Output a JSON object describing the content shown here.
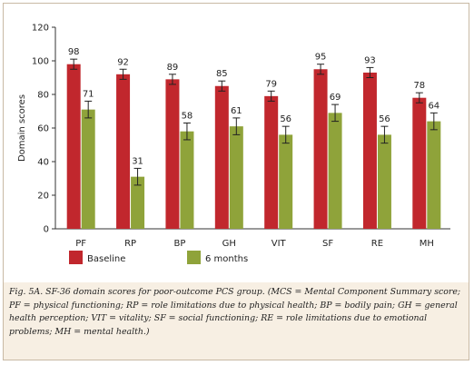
{
  "chart_data": {
    "type": "bar",
    "categories": [
      "PF",
      "RP",
      "BP",
      "GH",
      "VIT",
      "SF",
      "RE",
      "MH"
    ],
    "series": [
      {
        "name": "Baseline",
        "values": [
          98,
          92,
          89,
          85,
          79,
          95,
          93,
          78
        ],
        "error": [
          3,
          3,
          3,
          3,
          3,
          3,
          3,
          3
        ],
        "color": "#c1272d"
      },
      {
        "name": "6 months",
        "values": [
          71,
          31,
          58,
          61,
          56,
          69,
          56,
          64
        ],
        "error": [
          5,
          5,
          5,
          5,
          5,
          5,
          5,
          5
        ],
        "color": "#8fa33a"
      }
    ],
    "xlabel": "",
    "ylabel": "Domain scores",
    "ylim": [
      0,
      120
    ],
    "yticks": [
      0,
      20,
      40,
      60,
      80,
      100,
      120
    ],
    "legend": "bottom-left"
  },
  "caption": "Fig. 5A. SF-36 domain scores for poor-outcome PCS group. (MCS = Mental Component Summary score; PF = physical functioning; RP = role limitations due to physical health; BP = bodily pain; GH = general health perception; VIT = vitality; SF = social functioning; RE = role limitations due to emotional problems; MH = mental health.)"
}
